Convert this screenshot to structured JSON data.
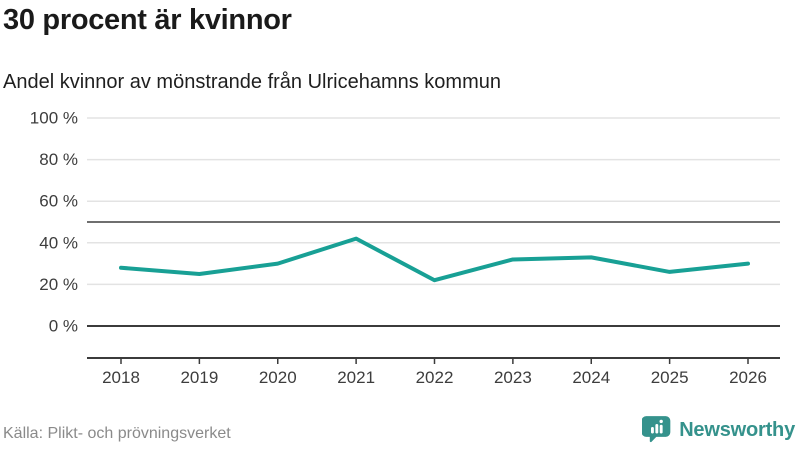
{
  "header": {
    "title": "30 procent är kvinnor",
    "subtitle": "Andel kvinnor av mönstrande från Ulricehamns kommun"
  },
  "chart_data": {
    "type": "line",
    "title": "30 procent är kvinnor",
    "subtitle": "Andel kvinnor av mönstrande från Ulricehamns kommun",
    "categories": [
      "2018",
      "2019",
      "2020",
      "2021",
      "2022",
      "2023",
      "2024",
      "2025",
      "2026"
    ],
    "series": [
      {
        "name": "Andel kvinnor av mönstrande",
        "values": [
          28,
          25,
          30,
          42,
          22,
          32,
          33,
          26,
          30
        ]
      }
    ],
    "unit": "%",
    "xlabel": "",
    "ylabel": "",
    "ylim": [
      0,
      100
    ],
    "yticks": [
      0,
      20,
      40,
      60,
      80,
      100
    ],
    "ytick_suffix": " %",
    "reference_line": 50,
    "grid": true,
    "legend_position": "none"
  },
  "footer": {
    "source": "Källa: Plikt- och prövningsverket",
    "logo_text": "Newsworthy"
  },
  "colors": {
    "line_teal": "#18a095",
    "grid_light": "#e3e3e3",
    "reference_dark": "#6f6f6f",
    "axis_dark": "#3b3b3b",
    "tick_text": "#3d3d3d",
    "text_dark": "#1a1a1a",
    "text_muted": "#8a8a8a",
    "logo_teal": "#35928c"
  }
}
